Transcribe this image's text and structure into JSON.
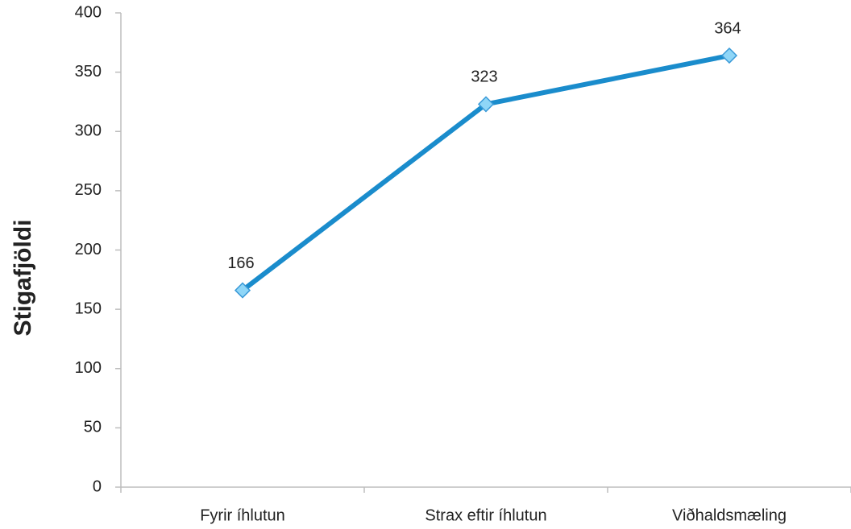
{
  "chart_data": {
    "type": "line",
    "y_label": "Stigafjöldi",
    "categories": [
      "Fyrir íhlutun",
      "Strax eftir íhlutun",
      "Viðhaldsmæling"
    ],
    "series": [
      {
        "name": "Stigafjöldi",
        "color": "#1a8ccc",
        "marker_color": "#8fd6f7",
        "values": [
          166,
          323,
          364
        ]
      }
    ],
    "ylim": [
      0,
      400
    ],
    "yticks": [
      0,
      50,
      100,
      150,
      200,
      250,
      300,
      350,
      400
    ],
    "grid": false,
    "legend": false
  }
}
